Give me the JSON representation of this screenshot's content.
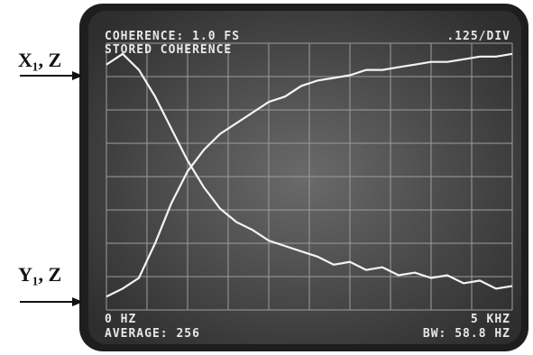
{
  "chart_data": {
    "type": "line",
    "title": "COHERENCE: 1.0 FS",
    "scale": ".125/DIV",
    "subtitle": "STORED COHERENCE",
    "x_start_label": "0 HZ",
    "x_end_label": "5 KHZ",
    "average": "AVERAGE: 256",
    "bandwidth": "BW: 58.8 HZ",
    "x": [
      0,
      200,
      400,
      600,
      800,
      1000,
      1200,
      1400,
      1600,
      1800,
      2000,
      2200,
      2400,
      2600,
      2800,
      3000,
      3200,
      3400,
      3600,
      3800,
      4000,
      4200,
      4400,
      4600,
      4800,
      5000
    ],
    "xlim": [
      0,
      5000
    ],
    "ylim": [
      0,
      1
    ],
    "series": [
      {
        "name": "X₁, Z",
        "color": "#f4f4f4",
        "values": [
          0.92,
          0.96,
          0.9,
          0.8,
          0.68,
          0.56,
          0.46,
          0.38,
          0.33,
          0.3,
          0.26,
          0.24,
          0.22,
          0.2,
          0.17,
          0.18,
          0.15,
          0.16,
          0.13,
          0.14,
          0.12,
          0.13,
          0.1,
          0.11,
          0.08,
          0.09
        ]
      },
      {
        "name": "Y₁, Z",
        "color": "#f4f4f4",
        "values": [
          0.05,
          0.08,
          0.12,
          0.25,
          0.4,
          0.52,
          0.6,
          0.66,
          0.7,
          0.74,
          0.78,
          0.8,
          0.84,
          0.86,
          0.87,
          0.88,
          0.9,
          0.9,
          0.91,
          0.92,
          0.93,
          0.93,
          0.94,
          0.95,
          0.95,
          0.96
        ]
      }
    ]
  }
}
